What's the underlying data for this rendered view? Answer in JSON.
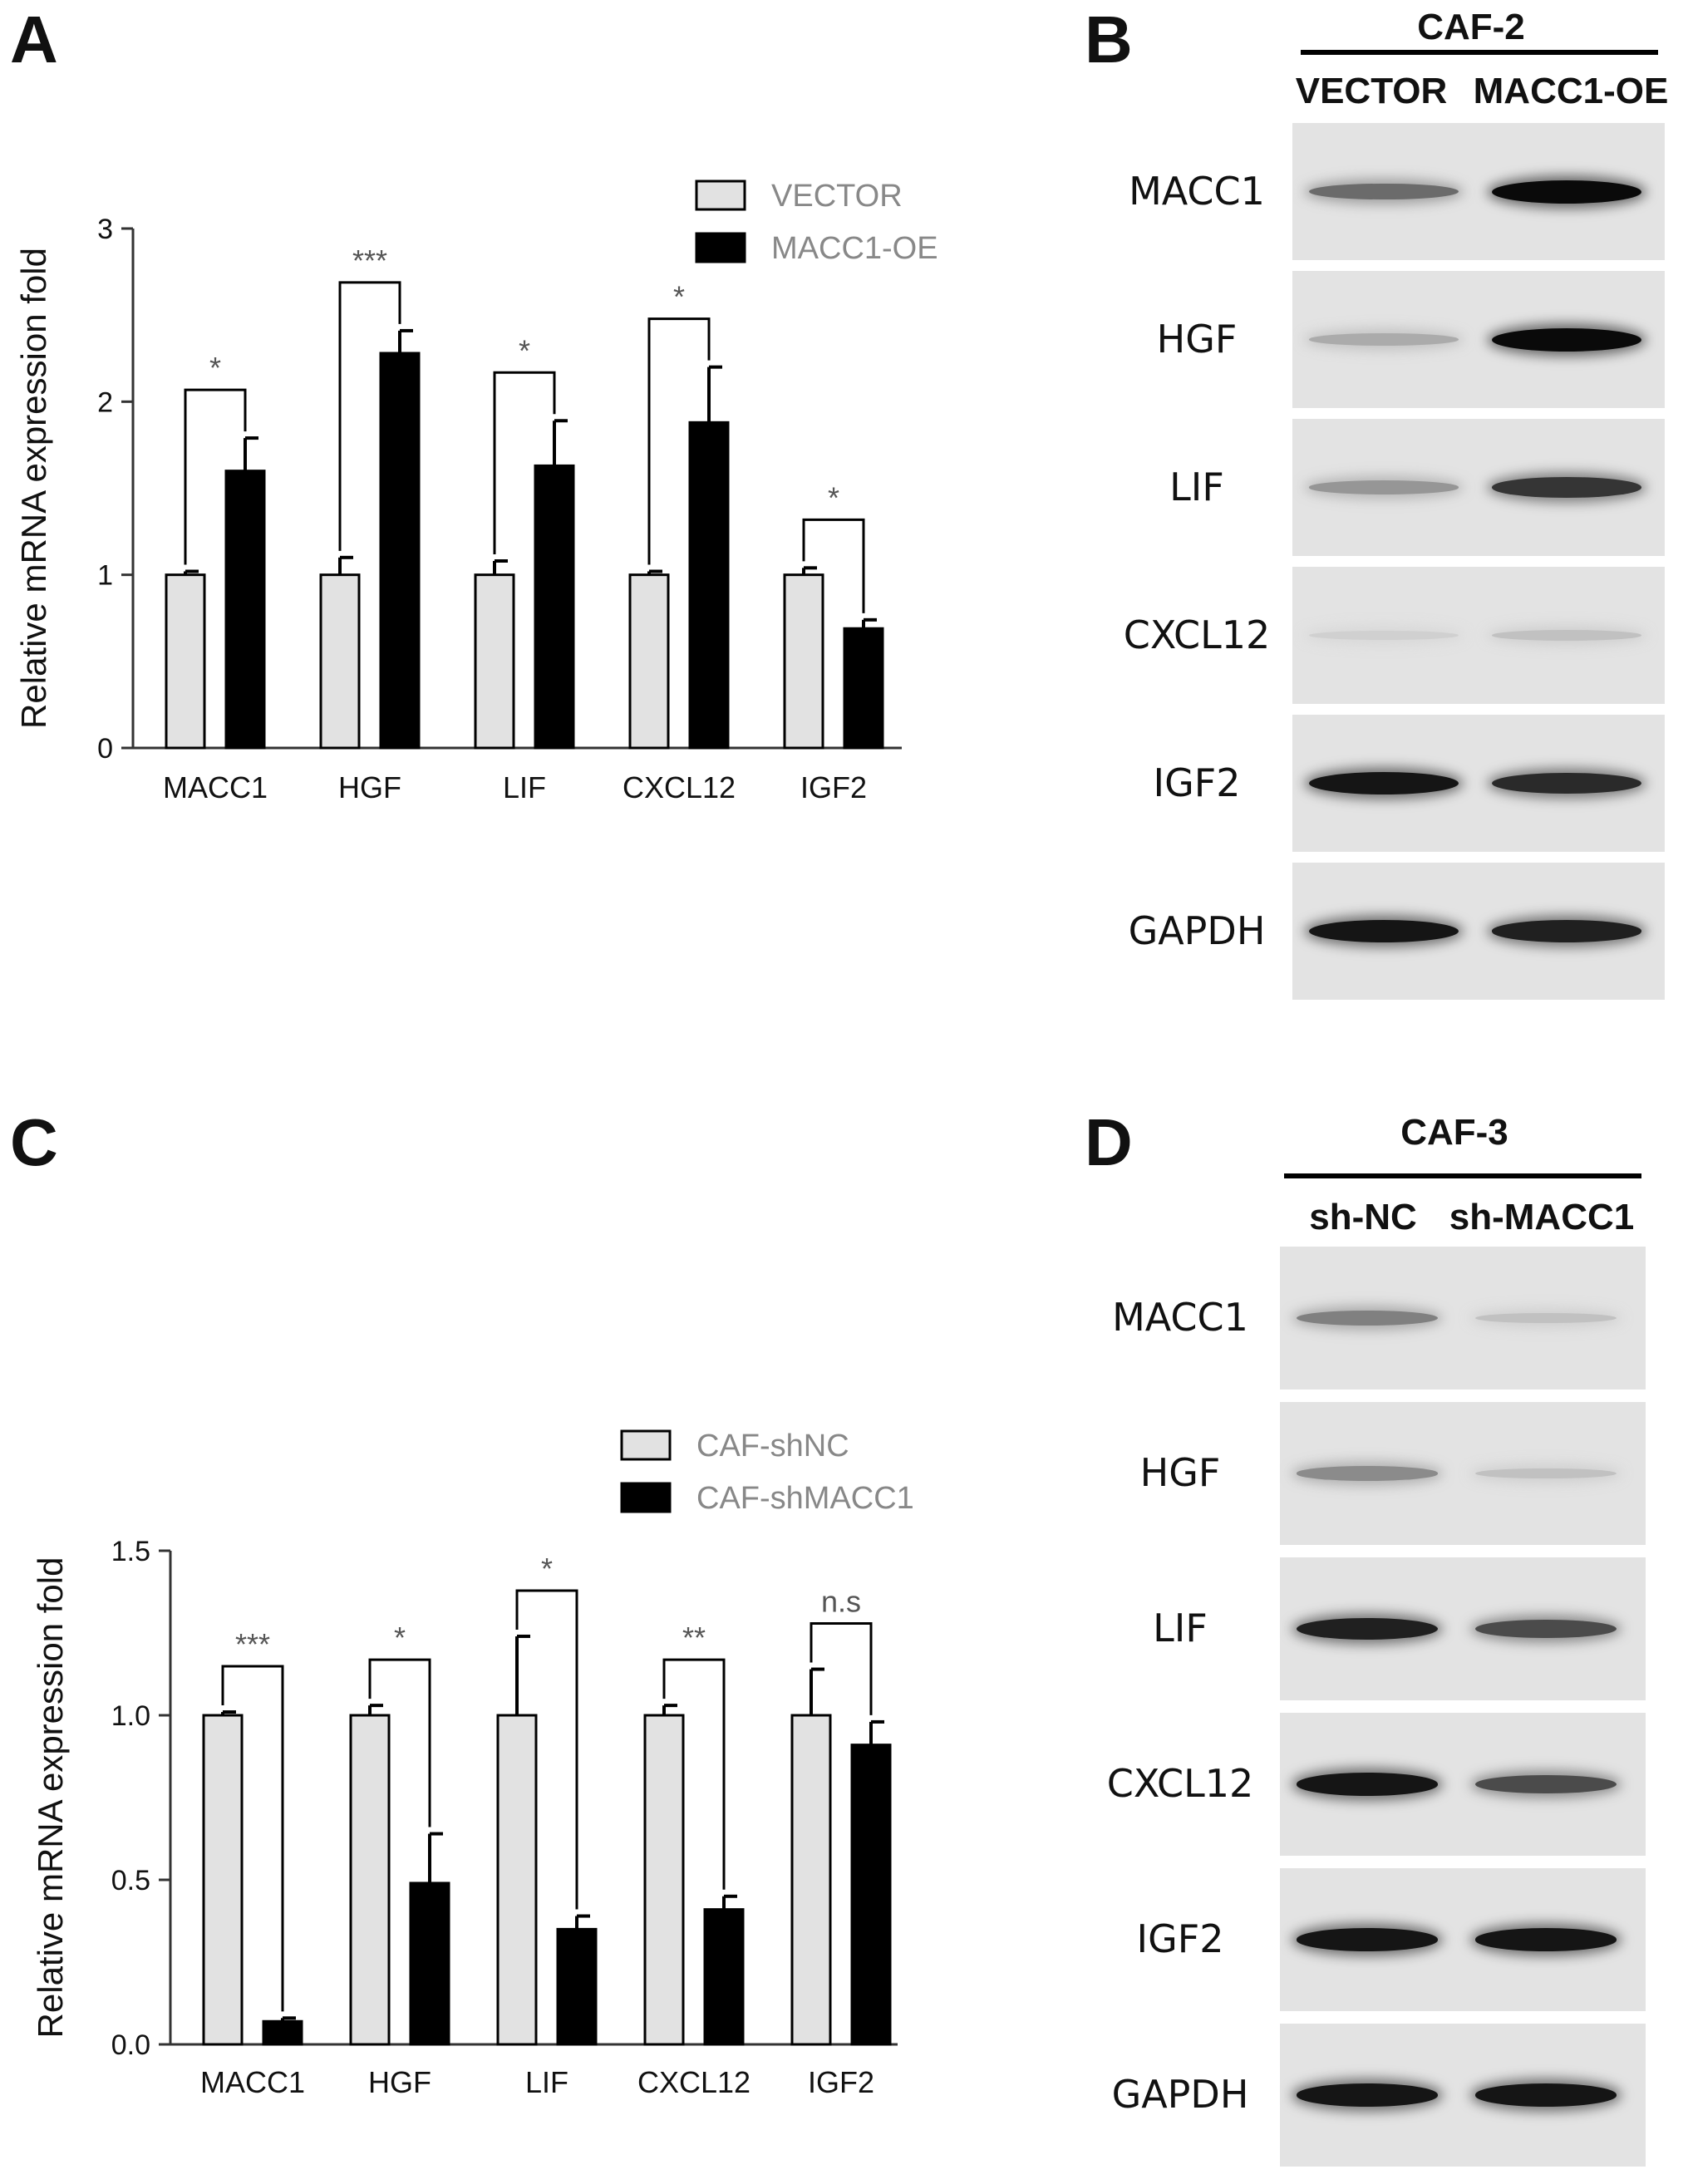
{
  "panels": {
    "A": "A",
    "B": "B",
    "C": "C",
    "D": "D"
  },
  "chart_data": [
    {
      "type": "bar",
      "panel": "A",
      "ylabel": "Relative mRNA expression fold",
      "ylim": [
        0,
        3
      ],
      "yticks": [
        "0",
        "1",
        "2",
        "3"
      ],
      "categories": [
        "MACC1",
        "HGF",
        "LIF",
        "CXCL12",
        "IGF2"
      ],
      "series": [
        {
          "name": "VECTOR",
          "color": "#e2e2e2",
          "values": [
            1.0,
            1.0,
            1.0,
            1.0,
            1.0
          ],
          "errors": [
            0.02,
            0.1,
            0.08,
            0.02,
            0.04
          ]
        },
        {
          "name": "MACC1-OE",
          "color": "#000000",
          "values": [
            1.6,
            2.28,
            1.63,
            1.88,
            0.69
          ],
          "errors": [
            0.19,
            0.13,
            0.26,
            0.32,
            0.05
          ]
        }
      ],
      "significance": [
        "*",
        "***",
        "*",
        "*",
        "*"
      ],
      "legend_position": "top-right"
    },
    {
      "type": "bar",
      "panel": "C",
      "ylabel": "Relative mRNA expression fold",
      "ylim": [
        0,
        1.5
      ],
      "yticks": [
        "0.0",
        "0.5",
        "1.0",
        "1.5"
      ],
      "categories": [
        "MACC1",
        "HGF",
        "LIF",
        "CXCL12",
        "IGF2"
      ],
      "series": [
        {
          "name": "CAF-shNC",
          "color": "#e2e2e2",
          "values": [
            1.0,
            1.0,
            1.0,
            1.0,
            1.0
          ],
          "errors": [
            0.01,
            0.03,
            0.24,
            0.03,
            0.14
          ]
        },
        {
          "name": "CAF-shMACC1",
          "color": "#000000",
          "values": [
            0.07,
            0.49,
            0.35,
            0.41,
            0.91
          ],
          "errors": [
            0.01,
            0.15,
            0.04,
            0.04,
            0.07
          ]
        }
      ],
      "significance": [
        "***",
        "*",
        "*",
        "**",
        "n.s"
      ],
      "legend_position": "top-right"
    }
  ],
  "western_blots": [
    {
      "panel": "B",
      "group_title": "CAF-2",
      "lanes": [
        "VECTOR",
        "MACC1-OE"
      ],
      "rows": [
        "MACC1",
        "HGF",
        "LIF",
        "CXCL12",
        "IGF2",
        "GAPDH"
      ],
      "band_intensity": [
        [
          0.55,
          1.0
        ],
        [
          0.25,
          1.0
        ],
        [
          0.35,
          0.8
        ],
        [
          0.08,
          0.15
        ],
        [
          0.95,
          0.85
        ],
        [
          0.95,
          0.9
        ]
      ]
    },
    {
      "panel": "D",
      "group_title": "CAF-3",
      "lanes": [
        "sh-NC",
        "sh-MACC1"
      ],
      "rows": [
        "MACC1",
        "HGF",
        "LIF",
        "CXCL12",
        "IGF2",
        "GAPDH"
      ],
      "band_intensity": [
        [
          0.45,
          0.15
        ],
        [
          0.4,
          0.15
        ],
        [
          0.9,
          0.7
        ],
        [
          0.95,
          0.7
        ],
        [
          0.95,
          0.95
        ],
        [
          0.95,
          0.95
        ]
      ]
    }
  ]
}
